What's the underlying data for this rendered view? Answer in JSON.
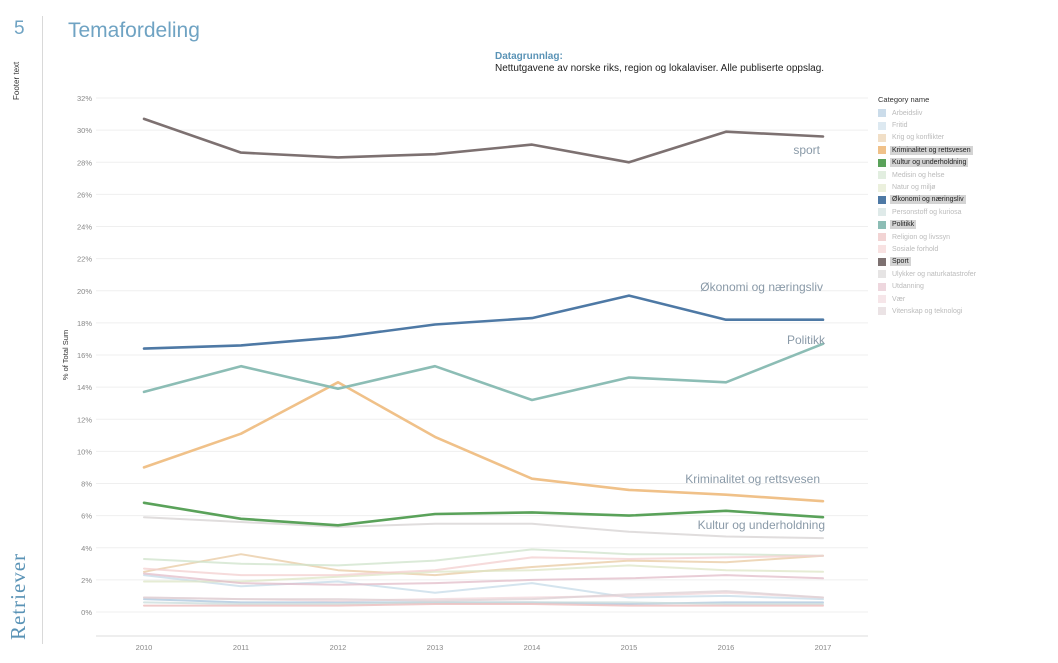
{
  "slide": {
    "number": "5",
    "footer": "Footer text",
    "logo": "Retriever"
  },
  "title": "Temafordeling",
  "basis": {
    "label": "Datagrunnlag:",
    "text": "Nettutgavene av norske riks, region og lokalaviser. Alle publiserte oppslag."
  },
  "chart_data": {
    "type": "line",
    "title": "Temafordeling",
    "xlabel": "",
    "ylabel": "% of Total Sum",
    "x": [
      "2010",
      "2011",
      "2012",
      "2013",
      "2014",
      "2015",
      "2016",
      "2017"
    ],
    "ylim": [
      0,
      32
    ],
    "yticks": [
      "0%",
      "2%",
      "4%",
      "6%",
      "8%",
      "10%",
      "12%",
      "14%",
      "16%",
      "18%",
      "20%",
      "22%",
      "24%",
      "26%",
      "28%",
      "30%",
      "32%"
    ],
    "legend_title": "Category name",
    "series": [
      {
        "name": "Arbeidsliv",
        "color": "#a9c4dc",
        "highlight": false,
        "values": [
          0.8,
          0.6,
          0.6,
          0.6,
          0.6,
          0.5,
          0.6,
          0.6
        ]
      },
      {
        "name": "Fritid",
        "color": "#c6dbe8",
        "highlight": false,
        "values": [
          2.3,
          1.6,
          1.9,
          1.2,
          1.8,
          0.9,
          1.0,
          0.8
        ]
      },
      {
        "name": "Krig og konflikter",
        "color": "#e8c9a2",
        "highlight": false,
        "values": [
          2.5,
          3.6,
          2.6,
          2.3,
          2.8,
          3.2,
          3.1,
          3.5
        ]
      },
      {
        "name": "Kriminalitet og rettsvesen",
        "color": "#f0c189",
        "highlight": true,
        "values": [
          9.0,
          11.1,
          14.3,
          10.9,
          8.3,
          7.6,
          7.3,
          6.9
        ]
      },
      {
        "name": "Kultur og underholdning",
        "color": "#5aa25a",
        "highlight": true,
        "values": [
          6.8,
          5.8,
          5.4,
          6.1,
          6.2,
          6.0,
          6.3,
          5.9
        ]
      },
      {
        "name": "Medisin og helse",
        "color": "#cfe3cb",
        "highlight": false,
        "values": [
          3.3,
          3.0,
          2.9,
          3.2,
          3.9,
          3.6,
          3.6,
          3.5
        ]
      },
      {
        "name": "Natur og miljø",
        "color": "#dde6c6",
        "highlight": false,
        "values": [
          1.9,
          1.9,
          2.2,
          2.5,
          2.6,
          2.9,
          2.6,
          2.5
        ]
      },
      {
        "name": "Økonomi og næringsliv",
        "color": "#4e79a5",
        "highlight": true,
        "values": [
          16.4,
          16.6,
          17.1,
          17.9,
          18.3,
          19.7,
          18.2,
          18.2
        ]
      },
      {
        "name": "Personstoff og kuriosa",
        "color": "#c9dcdb",
        "highlight": false,
        "values": [
          0.6,
          0.5,
          0.5,
          0.6,
          0.6,
          0.6,
          0.5,
          0.5
        ]
      },
      {
        "name": "Politikk",
        "color": "#8cbdb5",
        "highlight": true,
        "values": [
          13.7,
          15.3,
          13.9,
          15.3,
          13.2,
          14.6,
          14.3,
          16.7
        ]
      },
      {
        "name": "Religion og livssyn",
        "color": "#e9b8b8",
        "highlight": false,
        "values": [
          0.4,
          0.4,
          0.4,
          0.5,
          0.5,
          0.4,
          0.4,
          0.4
        ]
      },
      {
        "name": "Sosiale forhold",
        "color": "#f3cfcf",
        "highlight": false,
        "values": [
          2.7,
          2.3,
          2.3,
          2.6,
          3.4,
          3.3,
          3.4,
          3.5
        ]
      },
      {
        "name": "Sport",
        "color": "#7d7171",
        "highlight": true,
        "values": [
          30.7,
          28.6,
          28.3,
          28.5,
          29.1,
          28.0,
          29.9,
          29.6
        ]
      },
      {
        "name": "Ulykker og naturkatastrofer",
        "color": "#d6d2d2",
        "highlight": false,
        "values": [
          5.9,
          5.6,
          5.3,
          5.5,
          5.5,
          5.0,
          4.7,
          4.6
        ]
      },
      {
        "name": "Utdanning",
        "color": "#e2bcc8",
        "highlight": false,
        "values": [
          2.4,
          1.8,
          1.7,
          1.8,
          2.0,
          2.1,
          2.3,
          2.1
        ]
      },
      {
        "name": "Vær",
        "color": "#f0d6da",
        "highlight": false,
        "values": [
          0.9,
          0.8,
          0.7,
          0.8,
          0.9,
          1.0,
          1.2,
          0.9
        ]
      },
      {
        "name": "Vitenskap og teknologi",
        "color": "#ddd0d4",
        "highlight": false,
        "values": [
          0.9,
          0.8,
          0.8,
          0.7,
          0.8,
          1.1,
          1.3,
          0.9
        ]
      }
    ],
    "annotations": [
      {
        "series": "Sport",
        "text": "sport"
      },
      {
        "series": "Økonomi og næringsliv",
        "text": "Økonomi og næringsliv"
      },
      {
        "series": "Politikk",
        "text": "Politikk"
      },
      {
        "series": "Kriminalitet og rettsvesen",
        "text": "Kriminalitet og rettsvesen"
      },
      {
        "series": "Kultur og underholdning",
        "text": "Kultur og underholdning"
      }
    ]
  }
}
